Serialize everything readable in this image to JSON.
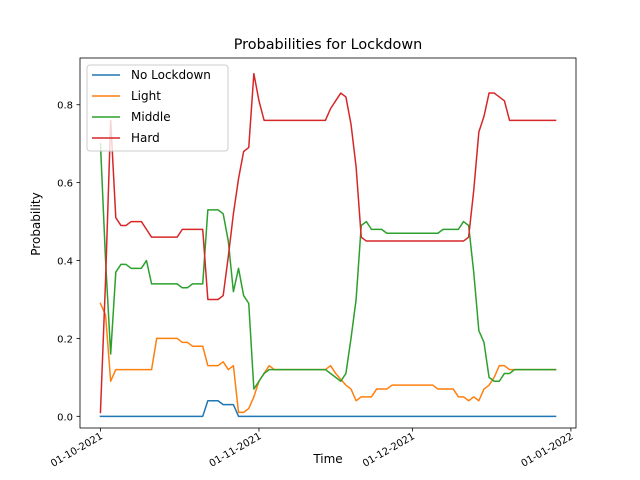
{
  "chart_data": {
    "type": "line",
    "title": "Probabilities for Lockdown",
    "xlabel": "Time",
    "ylabel": "Probability",
    "x_type": "date",
    "xlim": [
      "2021-09-27",
      "2022-01-02"
    ],
    "ylim": [
      -0.03,
      0.92
    ],
    "x_ticks": [
      {
        "date": "2021-10-01",
        "label": "01-10-2021"
      },
      {
        "date": "2021-11-01",
        "label": "01-11-2021"
      },
      {
        "date": "2021-12-01",
        "label": "01-12-2021"
      },
      {
        "date": "2022-01-01",
        "label": "01-01-2022"
      }
    ],
    "y_ticks": [
      0.0,
      0.2,
      0.4,
      0.6,
      0.8
    ],
    "y_tick_labels": [
      "0.0",
      "0.2",
      "0.4",
      "0.6",
      "0.8"
    ],
    "grid": false,
    "legend_position": "top-left",
    "series": [
      {
        "name": "No Lockdown",
        "color": "#1f77b4",
        "points": [
          [
            "2021-10-01",
            0.0
          ],
          [
            "2021-10-21",
            0.0
          ],
          [
            "2021-10-22",
            0.04
          ],
          [
            "2021-10-24",
            0.04
          ],
          [
            "2021-10-25",
            0.03
          ],
          [
            "2021-10-27",
            0.03
          ],
          [
            "2021-10-28",
            0.0
          ],
          [
            "2021-12-29",
            0.0
          ]
        ]
      },
      {
        "name": "Light",
        "color": "#ff7f0e",
        "points": [
          [
            "2021-10-01",
            0.29
          ],
          [
            "2021-10-02",
            0.26
          ],
          [
            "2021-10-03",
            0.09
          ],
          [
            "2021-10-04",
            0.12
          ],
          [
            "2021-10-05",
            0.12
          ],
          [
            "2021-10-11",
            0.12
          ],
          [
            "2021-10-12",
            0.2
          ],
          [
            "2021-10-16",
            0.2
          ],
          [
            "2021-10-17",
            0.19
          ],
          [
            "2021-10-18",
            0.19
          ],
          [
            "2021-10-19",
            0.18
          ],
          [
            "2021-10-21",
            0.18
          ],
          [
            "2021-10-22",
            0.13
          ],
          [
            "2021-10-24",
            0.13
          ],
          [
            "2021-10-25",
            0.14
          ],
          [
            "2021-10-26",
            0.12
          ],
          [
            "2021-10-27",
            0.13
          ],
          [
            "2021-10-28",
            0.01
          ],
          [
            "2021-10-29",
            0.01
          ],
          [
            "2021-10-30",
            0.02
          ],
          [
            "2021-10-31",
            0.05
          ],
          [
            "2021-11-01",
            0.09
          ],
          [
            "2021-11-02",
            0.11
          ],
          [
            "2021-11-03",
            0.13
          ],
          [
            "2021-11-04",
            0.12
          ],
          [
            "2021-11-14",
            0.12
          ],
          [
            "2021-11-15",
            0.13
          ],
          [
            "2021-11-16",
            0.11
          ],
          [
            "2021-11-18",
            0.08
          ],
          [
            "2021-11-19",
            0.07
          ],
          [
            "2021-11-20",
            0.04
          ],
          [
            "2021-11-21",
            0.05
          ],
          [
            "2021-11-23",
            0.05
          ],
          [
            "2021-11-24",
            0.07
          ],
          [
            "2021-11-26",
            0.07
          ],
          [
            "2021-11-27",
            0.08
          ],
          [
            "2021-12-05",
            0.08
          ],
          [
            "2021-12-06",
            0.07
          ],
          [
            "2021-12-09",
            0.07
          ],
          [
            "2021-12-10",
            0.05
          ],
          [
            "2021-12-11",
            0.05
          ],
          [
            "2021-12-12",
            0.04
          ],
          [
            "2021-12-13",
            0.05
          ],
          [
            "2021-12-14",
            0.04
          ],
          [
            "2021-12-15",
            0.07
          ],
          [
            "2021-12-16",
            0.08
          ],
          [
            "2021-12-17",
            0.1
          ],
          [
            "2021-12-18",
            0.13
          ],
          [
            "2021-12-19",
            0.13
          ],
          [
            "2021-12-20",
            0.12
          ],
          [
            "2021-12-29",
            0.12
          ]
        ]
      },
      {
        "name": "Middle",
        "color": "#2ca02c",
        "points": [
          [
            "2021-10-01",
            0.7
          ],
          [
            "2021-10-02",
            0.4
          ],
          [
            "2021-10-03",
            0.16
          ],
          [
            "2021-10-04",
            0.37
          ],
          [
            "2021-10-05",
            0.39
          ],
          [
            "2021-10-06",
            0.39
          ],
          [
            "2021-10-07",
            0.38
          ],
          [
            "2021-10-09",
            0.38
          ],
          [
            "2021-10-10",
            0.4
          ],
          [
            "2021-10-11",
            0.34
          ],
          [
            "2021-10-16",
            0.34
          ],
          [
            "2021-10-17",
            0.33
          ],
          [
            "2021-10-18",
            0.33
          ],
          [
            "2021-10-19",
            0.34
          ],
          [
            "2021-10-21",
            0.34
          ],
          [
            "2021-10-22",
            0.53
          ],
          [
            "2021-10-24",
            0.53
          ],
          [
            "2021-10-25",
            0.52
          ],
          [
            "2021-10-26",
            0.45
          ],
          [
            "2021-10-27",
            0.32
          ],
          [
            "2021-10-28",
            0.38
          ],
          [
            "2021-10-29",
            0.31
          ],
          [
            "2021-10-30",
            0.29
          ],
          [
            "2021-10-31",
            0.07
          ],
          [
            "2021-11-01",
            0.09
          ],
          [
            "2021-11-02",
            0.11
          ],
          [
            "2021-11-03",
            0.12
          ],
          [
            "2021-11-14",
            0.12
          ],
          [
            "2021-11-15",
            0.11
          ],
          [
            "2021-11-16",
            0.1
          ],
          [
            "2021-11-17",
            0.09
          ],
          [
            "2021-11-18",
            0.11
          ],
          [
            "2021-11-19",
            0.2
          ],
          [
            "2021-11-20",
            0.3
          ],
          [
            "2021-11-21",
            0.49
          ],
          [
            "2021-11-22",
            0.5
          ],
          [
            "2021-11-23",
            0.48
          ],
          [
            "2021-11-25",
            0.48
          ],
          [
            "2021-11-26",
            0.47
          ],
          [
            "2021-12-06",
            0.47
          ],
          [
            "2021-12-07",
            0.48
          ],
          [
            "2021-12-10",
            0.48
          ],
          [
            "2021-12-11",
            0.5
          ],
          [
            "2021-12-12",
            0.49
          ],
          [
            "2021-12-13",
            0.37
          ],
          [
            "2021-12-14",
            0.22
          ],
          [
            "2021-12-15",
            0.19
          ],
          [
            "2021-12-16",
            0.1
          ],
          [
            "2021-12-17",
            0.09
          ],
          [
            "2021-12-18",
            0.09
          ],
          [
            "2021-12-19",
            0.11
          ],
          [
            "2021-12-20",
            0.11
          ],
          [
            "2021-12-21",
            0.12
          ],
          [
            "2021-12-29",
            0.12
          ]
        ]
      },
      {
        "name": "Hard",
        "color": "#d62728",
        "points": [
          [
            "2021-10-01",
            0.01
          ],
          [
            "2021-10-02",
            0.35
          ],
          [
            "2021-10-03",
            0.76
          ],
          [
            "2021-10-04",
            0.51
          ],
          [
            "2021-10-05",
            0.49
          ],
          [
            "2021-10-06",
            0.49
          ],
          [
            "2021-10-07",
            0.5
          ],
          [
            "2021-10-09",
            0.5
          ],
          [
            "2021-10-10",
            0.48
          ],
          [
            "2021-10-11",
            0.46
          ],
          [
            "2021-10-16",
            0.46
          ],
          [
            "2021-10-17",
            0.48
          ],
          [
            "2021-10-21",
            0.48
          ],
          [
            "2021-10-22",
            0.3
          ],
          [
            "2021-10-24",
            0.3
          ],
          [
            "2021-10-25",
            0.31
          ],
          [
            "2021-10-26",
            0.41
          ],
          [
            "2021-10-27",
            0.52
          ],
          [
            "2021-10-28",
            0.61
          ],
          [
            "2021-10-29",
            0.68
          ],
          [
            "2021-10-30",
            0.69
          ],
          [
            "2021-10-31",
            0.88
          ],
          [
            "2021-11-01",
            0.81
          ],
          [
            "2021-11-02",
            0.76
          ],
          [
            "2021-11-14",
            0.76
          ],
          [
            "2021-11-15",
            0.79
          ],
          [
            "2021-11-16",
            0.81
          ],
          [
            "2021-11-17",
            0.83
          ],
          [
            "2021-11-18",
            0.82
          ],
          [
            "2021-11-19",
            0.75
          ],
          [
            "2021-11-20",
            0.64
          ],
          [
            "2021-11-21",
            0.46
          ],
          [
            "2021-11-22",
            0.45
          ],
          [
            "2021-12-11",
            0.45
          ],
          [
            "2021-12-12",
            0.46
          ],
          [
            "2021-12-13",
            0.58
          ],
          [
            "2021-12-14",
            0.73
          ],
          [
            "2021-12-15",
            0.77
          ],
          [
            "2021-12-16",
            0.83
          ],
          [
            "2021-12-17",
            0.83
          ],
          [
            "2021-12-18",
            0.82
          ],
          [
            "2021-12-19",
            0.81
          ],
          [
            "2021-12-20",
            0.76
          ],
          [
            "2021-12-29",
            0.76
          ]
        ]
      }
    ]
  }
}
